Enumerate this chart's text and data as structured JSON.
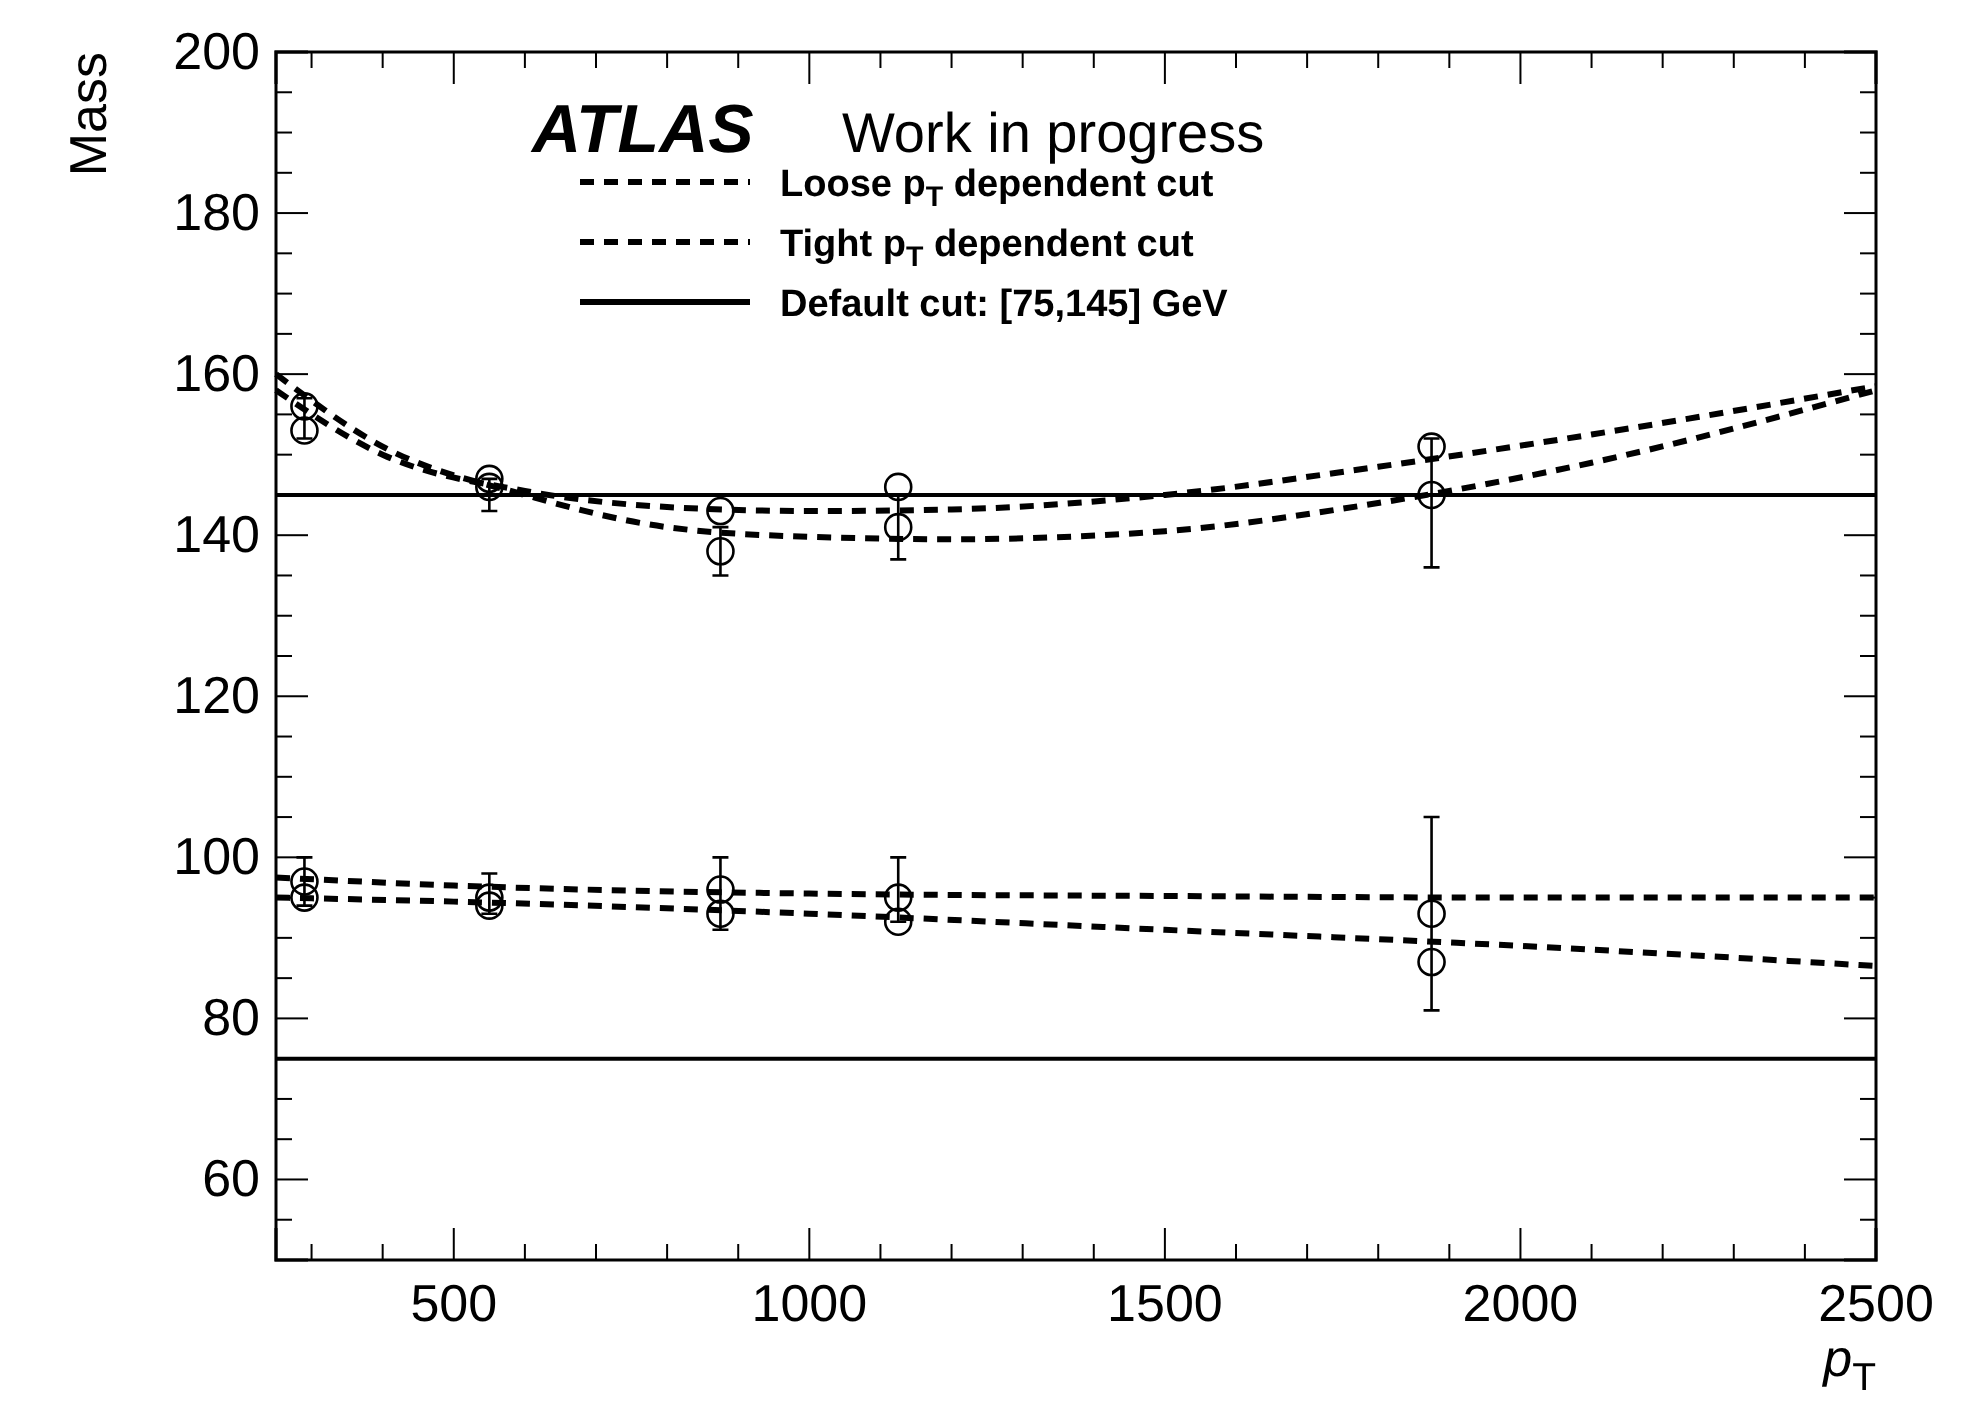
{
  "chart_data": {
    "type": "scatter",
    "xlabel": "p$_{T}$",
    "ylabel": "Mass",
    "annotations": [
      "ATLAS",
      "Work in progress"
    ],
    "xlim": [
      250,
      2500
    ],
    "ylim": [
      50,
      200
    ],
    "xticks": [
      {
        "value": 300,
        "label": null
      },
      {
        "value": 400,
        "label": null
      },
      500,
      {
        "value": 600,
        "label": null
      },
      {
        "value": 700,
        "label": null
      },
      {
        "value": 800,
        "label": null
      },
      {
        "value": 900,
        "label": null
      },
      1000,
      {
        "value": 1100,
        "label": null
      },
      {
        "value": 1200,
        "label": null
      },
      {
        "value": 1300,
        "label": null
      },
      {
        "value": 1400,
        "label": null
      },
      1500,
      {
        "value": 1600,
        "label": null
      },
      {
        "value": 1700,
        "label": null
      },
      {
        "value": 1800,
        "label": null
      },
      {
        "value": 1900,
        "label": null
      },
      2000,
      {
        "value": 2100,
        "label": null
      },
      {
        "value": 2200,
        "label": null
      },
      {
        "value": 2300,
        "label": null
      },
      {
        "value": 2400,
        "label": null
      },
      2500
    ],
    "yticks": [
      {
        "value": 55,
        "label": null
      },
      60,
      {
        "value": 65,
        "label": null
      },
      {
        "value": 70,
        "label": null
      },
      {
        "value": 75,
        "label": null
      },
      80,
      {
        "value": 85,
        "label": null
      },
      {
        "value": 90,
        "label": null
      },
      {
        "value": 95,
        "label": null
      },
      100,
      {
        "value": 105,
        "label": null
      },
      {
        "value": 110,
        "label": null
      },
      {
        "value": 115,
        "label": null
      },
      120,
      {
        "value": 125,
        "label": null
      },
      {
        "value": 130,
        "label": null
      },
      {
        "value": 135,
        "label": null
      },
      140,
      {
        "value": 145,
        "label": null
      },
      {
        "value": 150,
        "label": null
      },
      {
        "value": 155,
        "label": null
      },
      160,
      {
        "value": 165,
        "label": null
      },
      {
        "value": 170,
        "label": null
      },
      {
        "value": 175,
        "label": null
      },
      180,
      {
        "value": 185,
        "label": null
      },
      {
        "value": 190,
        "label": null
      },
      {
        "value": 195,
        "label": null
      },
      200
    ],
    "grid": false,
    "legend": "top",
    "marker": "circle",
    "ref_lines": [
      {
        "axis": "y",
        "value": 145,
        "label": "Default cut: [75,145] GeV",
        "color": "#000000",
        "line_style": "solid"
      },
      {
        "axis": "y",
        "value": 75,
        "color": "#000000",
        "line_style": "solid"
      }
    ],
    "series": [
      {
        "type": "line",
        "name": "Loose p$_{T}$ dependent cut",
        "color": "#000000",
        "line_style": "dashed",
        "marker": "none",
        "x": [
          250,
          400,
          600,
          800,
          1000,
          1200,
          1500,
          1800,
          2100,
          2500
        ],
        "values": [
          158,
          150,
          145.5,
          143.5,
          143,
          143.2,
          145,
          148.5,
          152.5,
          158.5
        ]
      },
      {
        "type": "line",
        "name": "Tight p$_{T}$ dependent cut",
        "color": "#000000",
        "line_style": "dashed",
        "marker": "none",
        "x": [
          250,
          400,
          600,
          800,
          1000,
          1200,
          1500,
          1800,
          2100,
          2500
        ],
        "values": [
          160,
          151,
          145,
          141,
          139.8,
          139.5,
          140.5,
          144,
          149,
          158
        ]
      },
      {
        "type": "line",
        "color": "#000000",
        "line_style": "dashed",
        "marker": "none",
        "x": [
          250,
          500,
          1000,
          1500,
          2000,
          2500
        ],
        "values": [
          95,
          94.5,
          93,
          91,
          89,
          86.5
        ]
      },
      {
        "type": "line",
        "color": "#000000",
        "line_style": "dashed",
        "marker": "none",
        "x": [
          250,
          500,
          1000,
          1500,
          2000,
          2500
        ],
        "values": [
          97.5,
          96.5,
          95.5,
          95.2,
          95,
          95
        ]
      },
      {
        "color": "#000000",
        "x": [
          290,
          550,
          875,
          1125,
          1875
        ],
        "values": [
          156,
          147,
          143,
          146,
          151
        ]
      },
      {
        "color": "#000000",
        "x": [
          290,
          550,
          875,
          1125,
          1875
        ],
        "values": [
          153,
          146,
          138,
          141,
          145
        ],
        "errors": [
          [
            152,
            157
          ],
          [
            143,
            147
          ],
          [
            135,
            141
          ],
          [
            137,
            145
          ],
          [
            136,
            152
          ]
        ]
      },
      {
        "color": "#000000",
        "x": [
          290,
          550,
          875,
          1125,
          1875
        ],
        "values": [
          95,
          94,
          93,
          92,
          87
        ]
      },
      {
        "color": "#000000",
        "x": [
          290,
          550,
          875,
          1125,
          1875
        ],
        "values": [
          97,
          95,
          96,
          95,
          93
        ],
        "errors": [
          [
            94,
            100
          ],
          [
            93,
            98
          ],
          [
            91,
            100
          ],
          [
            92,
            100
          ],
          [
            81,
            105
          ]
        ]
      }
    ]
  }
}
